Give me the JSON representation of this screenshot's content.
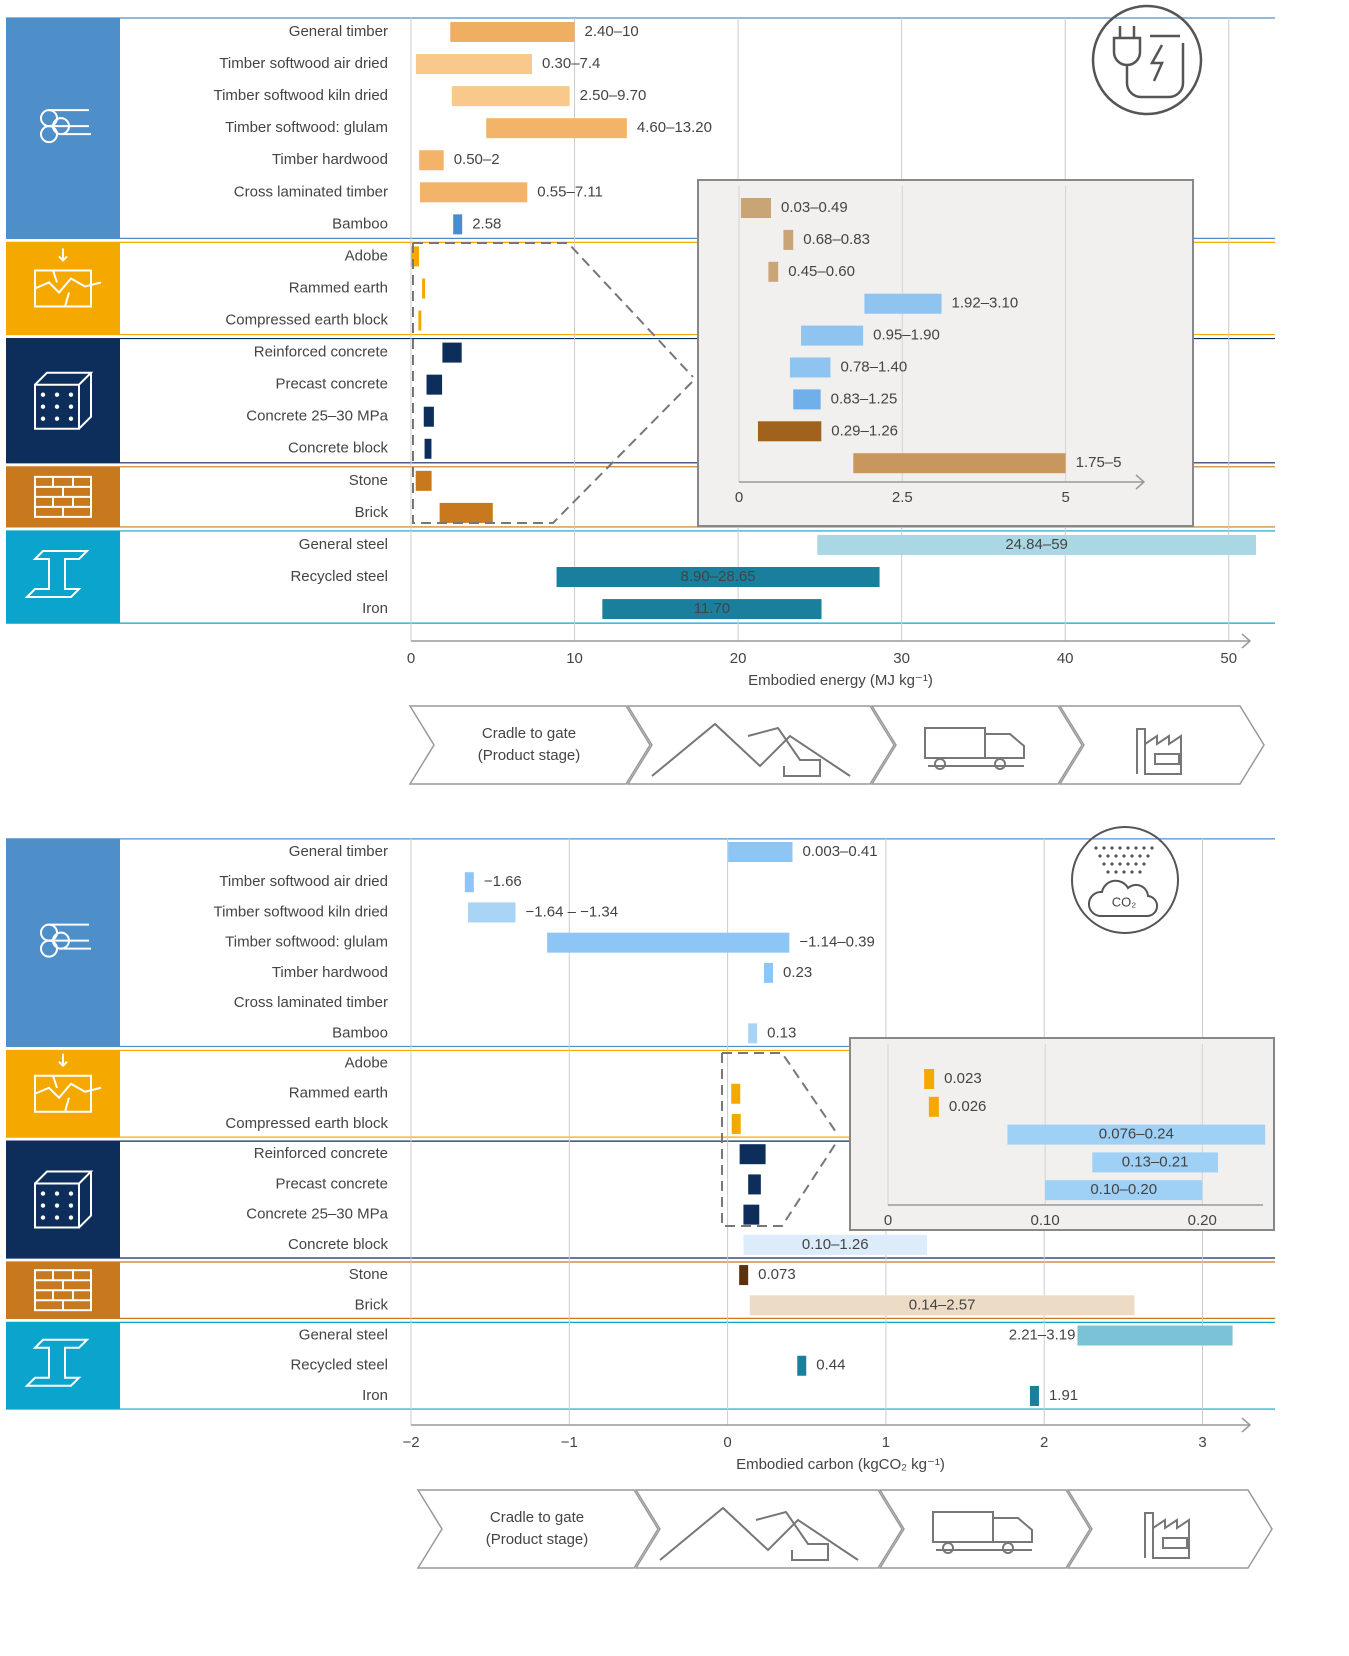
{
  "chart_data": [
    {
      "type": "range-bar",
      "categories": [
        "General timber",
        "Timber softwood air dried",
        "Timber softwood kiln dried",
        "Timber softwood: glulam",
        "Timber hardwood",
        "Cross laminated timber",
        "Bamboo",
        "Adobe",
        "Rammed earth",
        "Compressed earth block",
        "Reinforced concrete",
        "Precast concrete",
        "Concrete 25–30 MPa",
        "Concrete block",
        "Stone",
        "Brick",
        "General steel",
        "Recycled steel",
        "Iron"
      ],
      "low": [
        2.4,
        0.3,
        2.5,
        4.6,
        0.5,
        0.55,
        2.58,
        0.03,
        0.68,
        0.45,
        1.92,
        0.95,
        0.78,
        0.83,
        0.29,
        1.75,
        24.84,
        8.9,
        11.7
      ],
      "high": [
        10,
        7.4,
        9.7,
        13.2,
        2,
        7.11,
        null,
        0.49,
        0.83,
        0.6,
        3.1,
        1.9,
        1.4,
        1.25,
        1.26,
        5,
        59,
        28.65,
        25.1
      ],
      "value_labels": [
        "2.40–10",
        "0.30–7.4",
        "2.50–9.70",
        "4.60–13.20",
        "0.50–2",
        "0.55–7.11",
        "2.58",
        "0.03–0.49",
        "0.68–0.83",
        "0.45–0.60",
        "1.92–3.10",
        "0.95–1.90",
        "0.78–1.40",
        "0.83–1.25",
        "0.29–1.26",
        "1.75–5",
        "24.84–59",
        "8.90–28.65",
        "11.70"
      ],
      "colors": [
        "#f0ae62",
        "#f8c98a",
        "#f8c98a",
        "#f3b46a",
        "#f3b46a",
        "#f3b46a",
        "#4a8ccc",
        "#f5a800",
        "#f5a800",
        "#f5a800",
        "#0d2d5a",
        "#0d2d5a",
        "#0d2d5a",
        "#0d2d5a",
        "#c8791e",
        "#c8791e",
        "#a9d8e4",
        "#1a7f9c",
        "#1a7f9c"
      ],
      "xlim": [
        0,
        51.3
      ],
      "xticks": [
        0,
        10,
        20,
        30,
        40,
        50
      ],
      "xlabel": "Embodied energy (MJ kg⁻¹)",
      "inset": {
        "rows": [
          7,
          8,
          9,
          10,
          11,
          12,
          13,
          14,
          15
        ],
        "colors": [
          "#c9a477",
          "#c9a477",
          "#c9a477",
          "#8fc4f0",
          "#8fc4f0",
          "#8fc4f0",
          "#6fb0ea",
          "#a0621c",
          "#c8975e"
        ],
        "xlim": [
          0,
          6.2
        ],
        "xticks": [
          0,
          2.5,
          5
        ]
      },
      "stage_label": [
        "Cradle to gate",
        "(Product stage)"
      ]
    },
    {
      "type": "range-bar",
      "categories": [
        "General timber",
        "Timber softwood air dried",
        "Timber softwood kiln dried",
        "Timber softwood: glulam",
        "Timber hardwood",
        "Cross laminated timber",
        "Bamboo",
        "Adobe",
        "Rammed earth",
        "Compressed earth block",
        "Reinforced concrete",
        "Precast concrete",
        "Concrete 25–30 MPa",
        "Concrete block",
        "Stone",
        "Brick",
        "General steel",
        "Recycled steel",
        "Iron"
      ],
      "low": [
        0.003,
        -1.66,
        -1.64,
        -1.14,
        0.23,
        null,
        0.13,
        null,
        0.023,
        0.026,
        0.076,
        0.13,
        0.1,
        0.1,
        0.073,
        0.14,
        2.21,
        0.44,
        1.91
      ],
      "high": [
        0.41,
        null,
        -1.34,
        0.39,
        null,
        null,
        null,
        null,
        null,
        null,
        0.24,
        0.21,
        0.2,
        1.26,
        null,
        2.57,
        3.19,
        null,
        null
      ],
      "value_labels": [
        "0.003–0.41",
        "−1.66",
        "−1.64 – −1.34",
        "−1.14–0.39",
        "0.23",
        null,
        "0.13",
        null,
        "0.023",
        "0.026",
        "0.076–0.24",
        "0.13–0.21",
        "0.10–0.20",
        "0.10–1.26",
        "0.073",
        "0.14–2.57",
        "2.21–3.19",
        "0.44",
        "1.91"
      ],
      "colors": [
        "#8dc6f4",
        "#8dc6f4",
        "#a9d4f6",
        "#8dc6f4",
        "#8dc6f4",
        "#8dc6f4",
        "#a9d4f6",
        "#f5a800",
        "#f5a800",
        "#f5a800",
        "#0d2d5a",
        "#0d2d5a",
        "#0d2d5a",
        "#dcecfa",
        "#5a3210",
        "#ecdcc6",
        "#7cc2d6",
        "#1a7f9c",
        "#1a7f9c"
      ],
      "xlim": [
        -2,
        3.3
      ],
      "xticks": [
        {
          "value": -2,
          "label": "−2"
        },
        {
          "value": -1,
          "label": "−1"
        },
        0,
        1,
        2,
        3
      ],
      "xlabel": "Embodied carbon (kgCO₂ kg⁻¹)",
      "inset": {
        "rows": [
          8,
          9,
          10,
          11,
          12
        ],
        "colors": [
          "#f5a800",
          "#f5a800",
          "#9fd0f6",
          "#9fd0f6",
          "#9fd0f6"
        ],
        "xlim": [
          0,
          0.245
        ],
        "xticks": [
          0,
          {
            "value": 0.1,
            "label": "0.10"
          },
          {
            "value": 0.2,
            "label": "0.20"
          }
        ]
      },
      "icon_label": "CO₂",
      "stage_label": [
        "Cradle to gate",
        "(Product stage)"
      ]
    }
  ]
}
